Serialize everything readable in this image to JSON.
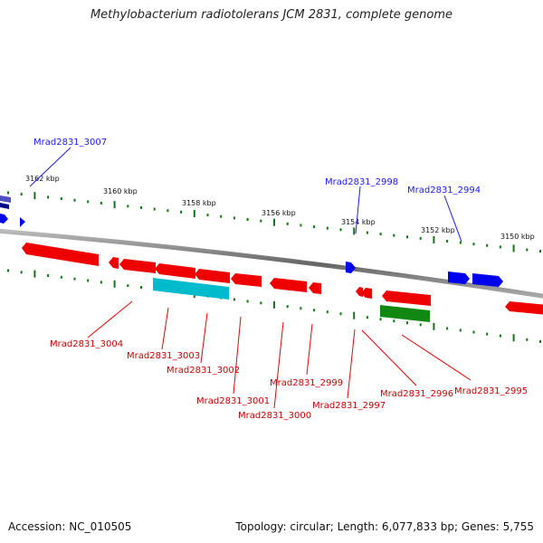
{
  "title": "Methylobacterium radiotolerans JCM 2831, complete genome",
  "ticks": [
    {
      "label": "3162 kbp"
    },
    {
      "label": "3160 kbp"
    },
    {
      "label": "3158 kbp"
    },
    {
      "label": "3156 kbp"
    },
    {
      "label": "3154 kbp"
    },
    {
      "label": "3152 kbp"
    },
    {
      "label": "3150 kbp"
    }
  ],
  "forward_gene_labels": [
    {
      "text": "Mrad2831_3007"
    },
    {
      "text": "Mrad2831_2998"
    },
    {
      "text": "Mrad2831_2994"
    }
  ],
  "reverse_gene_labels": [
    {
      "text": "Mrad2831_3004"
    },
    {
      "text": "Mrad2831_3003"
    },
    {
      "text": "Mrad2831_3002"
    },
    {
      "text": "Mrad2831_3001"
    },
    {
      "text": "Mrad2831_3000"
    },
    {
      "text": "Mrad2831_2999"
    },
    {
      "text": "Mrad2831_2997"
    },
    {
      "text": "Mrad2831_2996"
    },
    {
      "text": "Mrad2831_2995"
    }
  ],
  "colors": {
    "forward_gene": "#0000ee",
    "reverse_gene": "#ee0000",
    "rna_gene": "#00bbcc",
    "other_gene": "#118811",
    "tick": "#117711",
    "backbone": "#888888"
  },
  "footer": {
    "accession": "Accession: NC_010505",
    "stats": "Topology: circular; Length: 6,077,833 bp; Genes: 5,755"
  }
}
